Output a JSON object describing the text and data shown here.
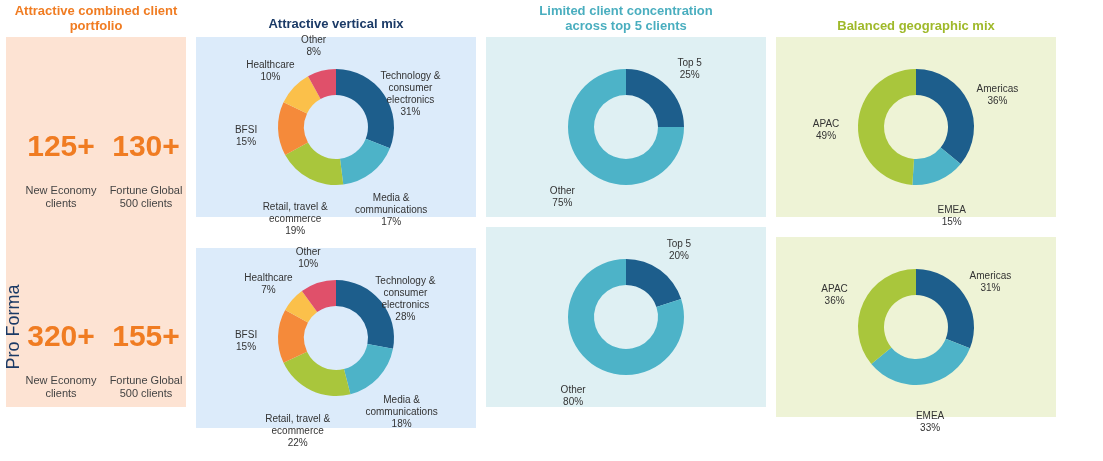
{
  "chart_data": [
    {
      "type": "other",
      "title": "Attractive combined client portfolio",
      "annotations": [
        "125+",
        "New Economy clients",
        "130+",
        "Fortune Global 500 clients",
        "320+",
        "New Economy clients",
        "155+",
        "Fortune Global 500 clients",
        "Pro Forma"
      ]
    },
    {
      "type": "donut",
      "title": "Attractive vertical mix",
      "categories": [
        "Technology & consumer electronics",
        "Media & communications",
        "Retail, travel & ecommerce",
        "BFSI",
        "Healthcare",
        "Other"
      ],
      "values": [
        31,
        17,
        19,
        15,
        10,
        8
      ],
      "value_labels": [
        "31%",
        "17%",
        "19%",
        "15%",
        "10%",
        "8%"
      ],
      "colors": [
        "#1d5e8c",
        "#4db3c8",
        "#a9c63c",
        "#f58a3a",
        "#fbc04a",
        "#e0506a"
      ]
    },
    {
      "type": "donut",
      "categories": [
        "Technology & consumer electronics",
        "Media & communications",
        "Retail, travel & ecommerce",
        "BFSI",
        "Healthcare",
        "Other"
      ],
      "values": [
        28,
        18,
        22,
        15,
        7,
        10
      ],
      "value_labels": [
        "28%",
        "18%",
        "22%",
        "15%",
        "7%",
        "10%"
      ],
      "colors": [
        "#1d5e8c",
        "#4db3c8",
        "#a9c63c",
        "#f58a3a",
        "#fbc04a",
        "#e0506a"
      ]
    },
    {
      "type": "donut",
      "title": "Limited client concentration across top 5 clients",
      "categories": [
        "Top 5",
        "Other"
      ],
      "values": [
        25,
        75
      ],
      "value_labels": [
        "25%",
        "75%"
      ],
      "colors": [
        "#1d5e8c",
        "#5bb8c8"
      ]
    },
    {
      "type": "donut",
      "categories": [
        "Top 5",
        "Other"
      ],
      "values": [
        20,
        80
      ],
      "value_labels": [
        "20%",
        "80%"
      ],
      "colors": [
        "#1d5e8c",
        "#5bb8c8"
      ]
    },
    {
      "type": "donut",
      "title": "Balanced geographic mix",
      "categories": [
        "Americas",
        "EMEA",
        "APAC"
      ],
      "values": [
        36,
        15,
        49
      ],
      "value_labels": [
        "36%",
        "15%",
        "49%"
      ],
      "colors": [
        "#1d5e8c",
        "#4db3c8",
        "#a9c63c"
      ]
    },
    {
      "type": "donut",
      "categories": [
        "Americas",
        "EMEA",
        "APAC"
      ],
      "values": [
        31,
        33,
        36
      ],
      "value_labels": [
        "31%",
        "33%",
        "36%"
      ],
      "colors": [
        "#1d5e8c",
        "#4db3c8",
        "#a9c63c"
      ]
    }
  ]
}
